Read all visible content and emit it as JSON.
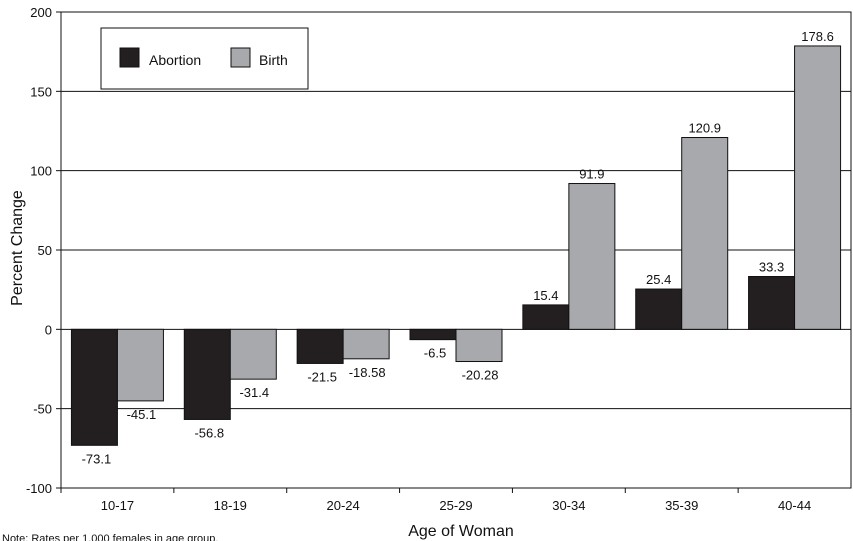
{
  "chart_data": {
    "type": "bar",
    "categories": [
      "10-17",
      "18-19",
      "20-24",
      "25-29",
      "30-34",
      "35-39",
      "40-44"
    ],
    "series": [
      {
        "name": "Abortion",
        "color": "#231f20",
        "values": [
          -73.1,
          -56.8,
          -21.5,
          -6.5,
          15.4,
          25.4,
          33.3
        ],
        "labels": [
          "-73.1",
          "-56.8",
          "-21.5",
          "-6.5",
          "15.4",
          "25.4",
          "33.3"
        ]
      },
      {
        "name": "Birth",
        "color": "#a7a9ac",
        "values": [
          -45.1,
          -31.4,
          -18.58,
          -20.28,
          91.9,
          120.9,
          178.6
        ],
        "labels": [
          "-45.1",
          "-31.4",
          "-18.58",
          "-20.28",
          "91.9",
          "120.9",
          "178.6"
        ]
      }
    ],
    "xlabel": "Age of Woman",
    "ylabel": "Percent Change",
    "ylim": [
      -100,
      200
    ],
    "yticks": [
      "200",
      "150",
      "100",
      "50",
      "0",
      "-50",
      "-100"
    ],
    "grid": true,
    "legend_position": "top-left",
    "note": "Note:  Rates per 1,000 females in age group."
  }
}
